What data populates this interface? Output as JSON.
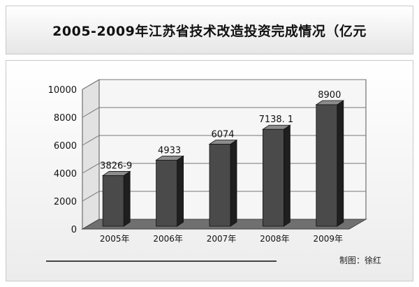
{
  "chart_data": {
    "type": "bar",
    "title": "2005-2009年江苏省技术改造投资完成情况（亿元",
    "categories": [
      "2005年",
      "2006年",
      "2007年",
      "2008年",
      "2009年"
    ],
    "values": [
      3826.9,
      4933,
      6074,
      7138.1,
      8900
    ],
    "value_labels": [
      "3826-9",
      "4933",
      "6074",
      "7138. 1",
      "8900"
    ],
    "ylim": [
      0,
      10000
    ],
    "yticks": [
      "0",
      "2000",
      "4000",
      "6000",
      "8000",
      "10000"
    ],
    "grid": true,
    "colors": {
      "bar_front": "#4a4a4a",
      "bar_side": "#1f1f1f",
      "bar_top": "#8c8c8c",
      "floor": "#707070",
      "back_wall": "#f6f6f6"
    }
  },
  "credit_text": "制图：徐红"
}
